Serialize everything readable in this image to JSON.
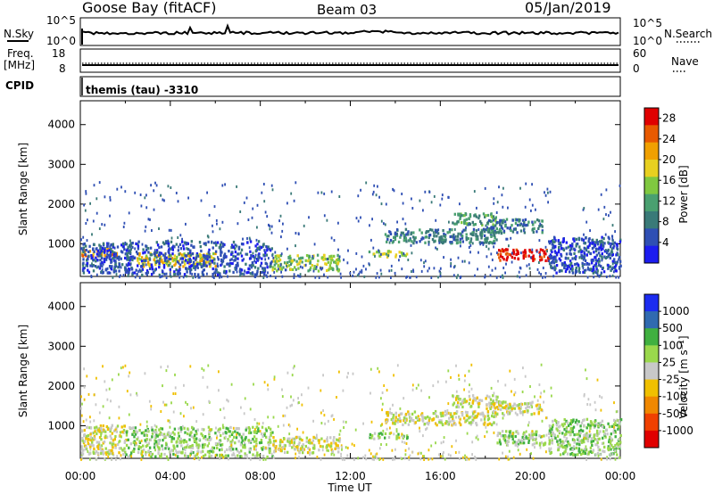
{
  "header": {
    "station": "Goose Bay (fitACF)",
    "beam": "Beam 03",
    "date": "05/Jan/2019"
  },
  "summary": {
    "nsky_label": "N.Sky",
    "nsky_ticks": [
      "10^5",
      "10^0"
    ],
    "nsearch_label": "N.Search",
    "nsearch_ticks": [
      "10^5",
      "10^0"
    ],
    "freq_label": "Freq.",
    "freq_unit": "[MHz]",
    "freq_ticks": [
      "18",
      "8"
    ],
    "nave_label": "Nave",
    "nave_ticks": [
      "60",
      "0"
    ],
    "cpid_label": "CPID",
    "cpid_text": "themis (tau) -3310"
  },
  "colors": {
    "power": [
      "#1c1cf0",
      "#2f4fb4",
      "#3a7a78",
      "#4aa070",
      "#80c840",
      "#e8d020",
      "#f0a000",
      "#e85a00",
      "#e00000"
    ],
    "velocity": [
      "#e00000",
      "#f04000",
      "#f08800",
      "#f0c000",
      "#c8c8c8",
      "#9ad84c",
      "#40b040",
      "#306ab0",
      "#1c2cf0"
    ],
    "grey": "#c8c8c8"
  },
  "chart_data": [
    {
      "type": "heatmap",
      "name": "power",
      "xlabel": "Time UT",
      "ylabel": "Slant Range [km]",
      "x_ticks": [
        "00:00",
        "04:00",
        "08:00",
        "12:00",
        "16:00",
        "20:00",
        "00:00"
      ],
      "y_ticks": [
        1000,
        2000,
        3000,
        4000
      ],
      "xlim_hours": [
        0,
        24
      ],
      "ylim_km": [
        180,
        4600
      ],
      "colorbar": {
        "label": "Power [dB]",
        "ticks": [
          4,
          8,
          12,
          16,
          20,
          24,
          28
        ],
        "range": [
          0,
          30
        ]
      },
      "regions": [
        {
          "t0": 0.0,
          "t1": 1.6,
          "r0": 700,
          "r1": 900,
          "level": 6
        },
        {
          "t0": 0.0,
          "t1": 2.2,
          "r0": 300,
          "r1": 1050,
          "level": 1
        },
        {
          "t0": 2.5,
          "t1": 6.0,
          "r0": 450,
          "r1": 800,
          "level": 5
        },
        {
          "t0": 2.0,
          "t1": 8.5,
          "r0": 250,
          "r1": 1100,
          "level": 1
        },
        {
          "t0": 8.5,
          "t1": 11.5,
          "r0": 350,
          "r1": 750,
          "level": 4
        },
        {
          "t0": 12.8,
          "t1": 14.5,
          "r0": 700,
          "r1": 850,
          "level": 4
        },
        {
          "t0": 13.5,
          "t1": 18.5,
          "r0": 1050,
          "r1": 1400,
          "level": 2
        },
        {
          "t0": 16.5,
          "t1": 18.5,
          "r0": 1500,
          "r1": 1800,
          "level": 3
        },
        {
          "t0": 18.0,
          "t1": 20.5,
          "r0": 1300,
          "r1": 1650,
          "level": 2
        },
        {
          "t0": 18.5,
          "t1": 20.8,
          "r0": 600,
          "r1": 900,
          "level": 8
        },
        {
          "t0": 20.8,
          "t1": 24.0,
          "r0": 300,
          "r1": 1200,
          "level": 1
        }
      ]
    },
    {
      "type": "heatmap",
      "name": "velocity",
      "xlabel": "Time UT",
      "ylabel": "Slant Range [km]",
      "x_ticks": [
        "00:00",
        "04:00",
        "08:00",
        "12:00",
        "16:00",
        "20:00",
        "00:00"
      ],
      "y_ticks": [
        1000,
        2000,
        3000,
        4000
      ],
      "xlim_hours": [
        0,
        24
      ],
      "ylim_km": [
        180,
        4600
      ],
      "colorbar": {
        "label": "Velocity [m s⁻¹]",
        "ticks": [
          "1000",
          "500",
          "100",
          "25",
          "-25",
          "-100",
          "-500",
          "-1000"
        ]
      },
      "regions": [
        {
          "t0": 0.0,
          "t1": 2.0,
          "r0": 300,
          "r1": 1050,
          "level": 4
        },
        {
          "t0": 2.0,
          "t1": 8.5,
          "r0": 250,
          "r1": 1000,
          "level": 5
        },
        {
          "t0": 8.5,
          "t1": 11.5,
          "r0": 350,
          "r1": 750,
          "level": 4
        },
        {
          "t0": 12.8,
          "t1": 14.5,
          "r0": 700,
          "r1": 850,
          "level": 5
        },
        {
          "t0": 13.5,
          "t1": 18.5,
          "r0": 1050,
          "r1": 1400,
          "level": 4
        },
        {
          "t0": 16.5,
          "t1": 18.5,
          "r0": 1500,
          "r1": 1800,
          "level": 4
        },
        {
          "t0": 18.0,
          "t1": 20.5,
          "r0": 1300,
          "r1": 1650,
          "level": 4
        },
        {
          "t0": 18.5,
          "t1": 20.8,
          "r0": 550,
          "r1": 900,
          "level": 5
        },
        {
          "t0": 20.8,
          "t1": 24.0,
          "r0": 300,
          "r1": 1200,
          "level": 5
        }
      ]
    }
  ]
}
